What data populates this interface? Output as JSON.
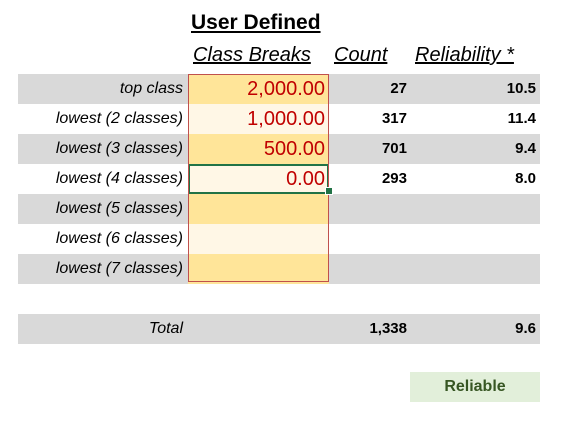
{
  "title": "User Defined",
  "headers": {
    "breaks": "Class Breaks",
    "count": "Count",
    "reliability": "Reliability *"
  },
  "rows": [
    {
      "label": "top class",
      "break": "2,000.00",
      "count": "27",
      "reliability": "10.5"
    },
    {
      "label": "lowest (2 classes)",
      "break": "1,000.00",
      "count": "317",
      "reliability": "11.4"
    },
    {
      "label": "lowest (3 classes)",
      "break": "500.00",
      "count": "701",
      "reliability": "9.4"
    },
    {
      "label": "lowest (4 classes)",
      "break": "0.00",
      "count": "293",
      "reliability": "8.0"
    },
    {
      "label": "lowest (5 classes)",
      "break": "",
      "count": "",
      "reliability": ""
    },
    {
      "label": "lowest (6 classes)",
      "break": "",
      "count": "",
      "reliability": ""
    },
    {
      "label": "lowest (7 classes)",
      "break": "",
      "count": "",
      "reliability": ""
    }
  ],
  "total": {
    "label": "Total",
    "count": "1,338",
    "reliability": "9.6"
  },
  "status": "Reliable",
  "colors": {
    "band": "#d9d9d9",
    "breakFill": "#ffe599",
    "breakText": "#c00000",
    "reliableFill": "#e2efda",
    "reliableText": "#375623"
  }
}
